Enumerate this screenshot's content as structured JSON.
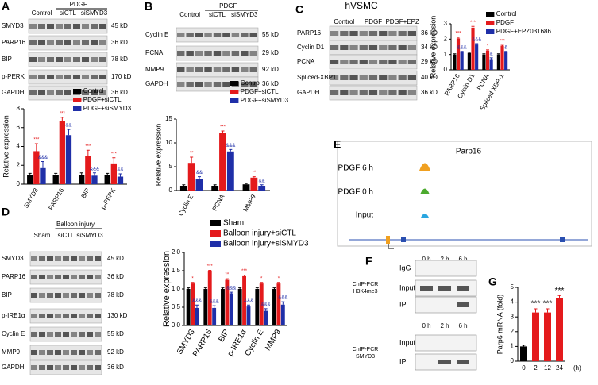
{
  "panel_letters": [
    "A",
    "B",
    "C",
    "D",
    "E",
    "F",
    "G"
  ],
  "blots": {
    "A": {
      "header": "PDGF",
      "lanes": [
        "Control",
        "siCTL",
        "siSMYD3"
      ],
      "rows": [
        {
          "label": "SMYD3",
          "size": "45 kD"
        },
        {
          "label": "PARP16",
          "size": "36 kD"
        },
        {
          "label": "BIP",
          "size": "78 kD"
        },
        {
          "label": "p-PERK",
          "size": "170 kD"
        },
        {
          "label": "GAPDH",
          "size": "36 kD"
        }
      ]
    },
    "B": {
      "header": "PDGF",
      "lanes": [
        "Control",
        "siCTL",
        "siSMYD3"
      ],
      "rows": [
        {
          "label": "Cyclin E",
          "size": "55 kD"
        },
        {
          "label": "PCNA",
          "size": "29 kD"
        },
        {
          "label": "MMP9",
          "size": "92 kD"
        },
        {
          "label": "GAPDH",
          "size": "36 kD"
        }
      ]
    },
    "C": {
      "title": "hVSMC",
      "lanes": [
        "Control",
        "PDGF",
        "PDGF+EPZ"
      ],
      "rows": [
        {
          "label": "PARP16",
          "size": "36 kD"
        },
        {
          "label": "Cyclin D1",
          "size": "34 kD"
        },
        {
          "label": "PCNA",
          "size": "29 kD"
        },
        {
          "label": "Spliced-XBP1",
          "size": "40 kD"
        },
        {
          "label": "GAPDH",
          "size": "36 kD"
        }
      ]
    },
    "D": {
      "header": "Balloon injury",
      "lanes": [
        "Sham",
        "siCTL",
        "siSMYD3"
      ],
      "rows": [
        {
          "label": "SMYD3",
          "size": "45 kD"
        },
        {
          "label": "PARP16",
          "size": "36 kD"
        },
        {
          "label": "BIP",
          "size": "78 kD"
        },
        {
          "label": "p-IRE1α",
          "size": "130 kD"
        },
        {
          "label": "Cyclin E",
          "size": "55 kD"
        },
        {
          "label": "MMP9",
          "size": "92 kD"
        },
        {
          "label": "GAPDH",
          "size": "36 kD"
        }
      ]
    }
  },
  "tracks": {
    "title": "Parp16",
    "labels": [
      "PDGF 6 h",
      "PDGF 0 h",
      "Input"
    ]
  },
  "chip": {
    "lanes": [
      "0 h",
      "2 h",
      "6 h"
    ],
    "blocks": [
      {
        "name": [
          "ChIP-PCR",
          "H3K4me3"
        ],
        "rows": [
          "IgG",
          "Input",
          "IP"
        ]
      },
      {
        "name": [
          "ChIP-PCR",
          "SMYD3"
        ],
        "rows": [
          "Input",
          "IP"
        ]
      }
    ]
  },
  "chart_data": [
    {
      "type": "grouped-bar",
      "ylabel": "Relative expression",
      "categories": [
        "SMYD3",
        "PARP16",
        "BIP",
        "p-PERK"
      ],
      "ylim": [
        0,
        8
      ],
      "yticks": [
        0,
        2,
        4,
        6,
        8
      ],
      "series": [
        {
          "name": "Control",
          "color": "#000000",
          "values": [
            1,
            1,
            1,
            1
          ],
          "errors": [
            0.15,
            0.15,
            0.2,
            0.15
          ]
        },
        {
          "name": "PDGF+siCTL",
          "color": "#e41a1c",
          "values": [
            3.5,
            6.7,
            3,
            2.2
          ],
          "errors": [
            0.8,
            0.4,
            0.6,
            0.6
          ],
          "significance": [
            "***",
            "***",
            "***",
            "***"
          ]
        },
        {
          "name": "PDGF+siSMYD3",
          "color": "#1f2fa8",
          "values": [
            1.7,
            5.2,
            0.9,
            0.8
          ],
          "errors": [
            0.7,
            0.6,
            0.3,
            0.3
          ],
          "significance": [
            "&&&",
            "&&",
            "&&&",
            "&&"
          ]
        }
      ]
    },
    {
      "type": "grouped-bar",
      "ylabel": "Relative expression",
      "categories": [
        "Cyclin E",
        "PCNA",
        "MMP9"
      ],
      "ylim": [
        0,
        15
      ],
      "yticks": [
        0,
        5,
        10,
        15
      ],
      "series": [
        {
          "name": "Control",
          "color": "#000000",
          "values": [
            1,
            1,
            1.3
          ],
          "errors": [
            0.2,
            0.2,
            0.2
          ]
        },
        {
          "name": "PDGF+siCTL",
          "color": "#e41a1c",
          "values": [
            5.8,
            12,
            2.7
          ],
          "errors": [
            1.2,
            0.5,
            0.2
          ],
          "significance": [
            "**",
            "***",
            "**"
          ]
        },
        {
          "name": "PDGF+siSMYD3",
          "color": "#1f2fa8",
          "values": [
            2.5,
            8.2,
            1
          ],
          "errors": [
            0.4,
            0.4,
            0.2
          ],
          "significance": [
            "&&",
            "&&&",
            "&&"
          ]
        }
      ]
    },
    {
      "type": "grouped-bar",
      "ylabel": "Relative expression",
      "categories": [
        "PARP16",
        "Cyclin D1",
        "PCNA",
        "Spliced XBP-1"
      ],
      "ylim": [
        0,
        3
      ],
      "yticks": [
        0,
        1,
        2,
        3
      ],
      "series": [
        {
          "name": "Control",
          "color": "#000000",
          "values": [
            1,
            1.1,
            1,
            1
          ],
          "errors": [
            0.05,
            0.05,
            0.05,
            0.05
          ]
        },
        {
          "name": "PDGF",
          "color": "#e41a1c",
          "values": [
            2.05,
            2.75,
            1.25,
            1.55
          ],
          "errors": [
            0.08,
            0.08,
            0.05,
            0.05
          ],
          "significance": [
            "***",
            "***",
            "*",
            "***"
          ]
        },
        {
          "name": "PDGF+EPZ031686",
          "color": "#1f2fa8",
          "values": [
            1.15,
            1.65,
            0.7,
            1.15
          ],
          "errors": [
            0.05,
            0.06,
            0.08,
            0.05
          ],
          "significance": [
            "&&&",
            "&&&",
            "&",
            "&"
          ]
        }
      ]
    },
    {
      "type": "grouped-bar",
      "ylabel": "Relative expression",
      "categories": [
        "SMYD3",
        "PARP16",
        "BIP",
        "p-IRE1α",
        "Cyclin E",
        "MMP9"
      ],
      "ylim": [
        0,
        2
      ],
      "yticks": [
        {
          "value": 0,
          "label": "0.0"
        },
        {
          "value": 0.5,
          "label": "0.5"
        },
        {
          "value": 1,
          "label": "1.0"
        },
        {
          "value": 1.5,
          "label": "1.5"
        },
        {
          "value": 2,
          "label": "2.0"
        }
      ],
      "series": [
        {
          "name": "Sham",
          "color": "#000000",
          "values": [
            1,
            1,
            1,
            1,
            1,
            1
          ],
          "errors": [
            0.03,
            0.03,
            0.03,
            0.03,
            0.03,
            0.03
          ]
        },
        {
          "name": "Balloon injury+siCTL",
          "color": "#e41a1c",
          "values": [
            1.15,
            1.48,
            1.25,
            1.35,
            1.15,
            1.15
          ],
          "errors": [
            0.03,
            0.03,
            0.03,
            0.03,
            0.03,
            0.03
          ],
          "significance": [
            "*",
            "***",
            "**",
            "***",
            "*",
            "*"
          ]
        },
        {
          "name": "Balloon injury+siSMYD3",
          "color": "#1f2fa8",
          "values": [
            0.48,
            0.48,
            0.88,
            0.52,
            0.4,
            0.57
          ],
          "errors": [
            0.08,
            0.06,
            0.03,
            0.04,
            0.06,
            0.08
          ],
          "significance": [
            "&&&",
            "&&&",
            "&&&",
            "&&&",
            "&&&",
            "&&&"
          ]
        }
      ]
    },
    {
      "type": "bar",
      "ylabel": "Parp6 mRNA (fold)",
      "xlabel": "(h)",
      "categories": [
        "0",
        "2",
        "12",
        "24"
      ],
      "ylim": [
        0,
        5
      ],
      "yticks": [
        0,
        1,
        2,
        3,
        4,
        5
      ],
      "values": [
        1,
        3.3,
        3.3,
        4.3
      ],
      "errors": [
        0.08,
        0.25,
        0.25,
        0.15
      ],
      "colors": [
        "#000000",
        "#e41a1c",
        "#e41a1c",
        "#e41a1c"
      ],
      "significance": [
        null,
        "***",
        "***",
        "***"
      ]
    }
  ]
}
